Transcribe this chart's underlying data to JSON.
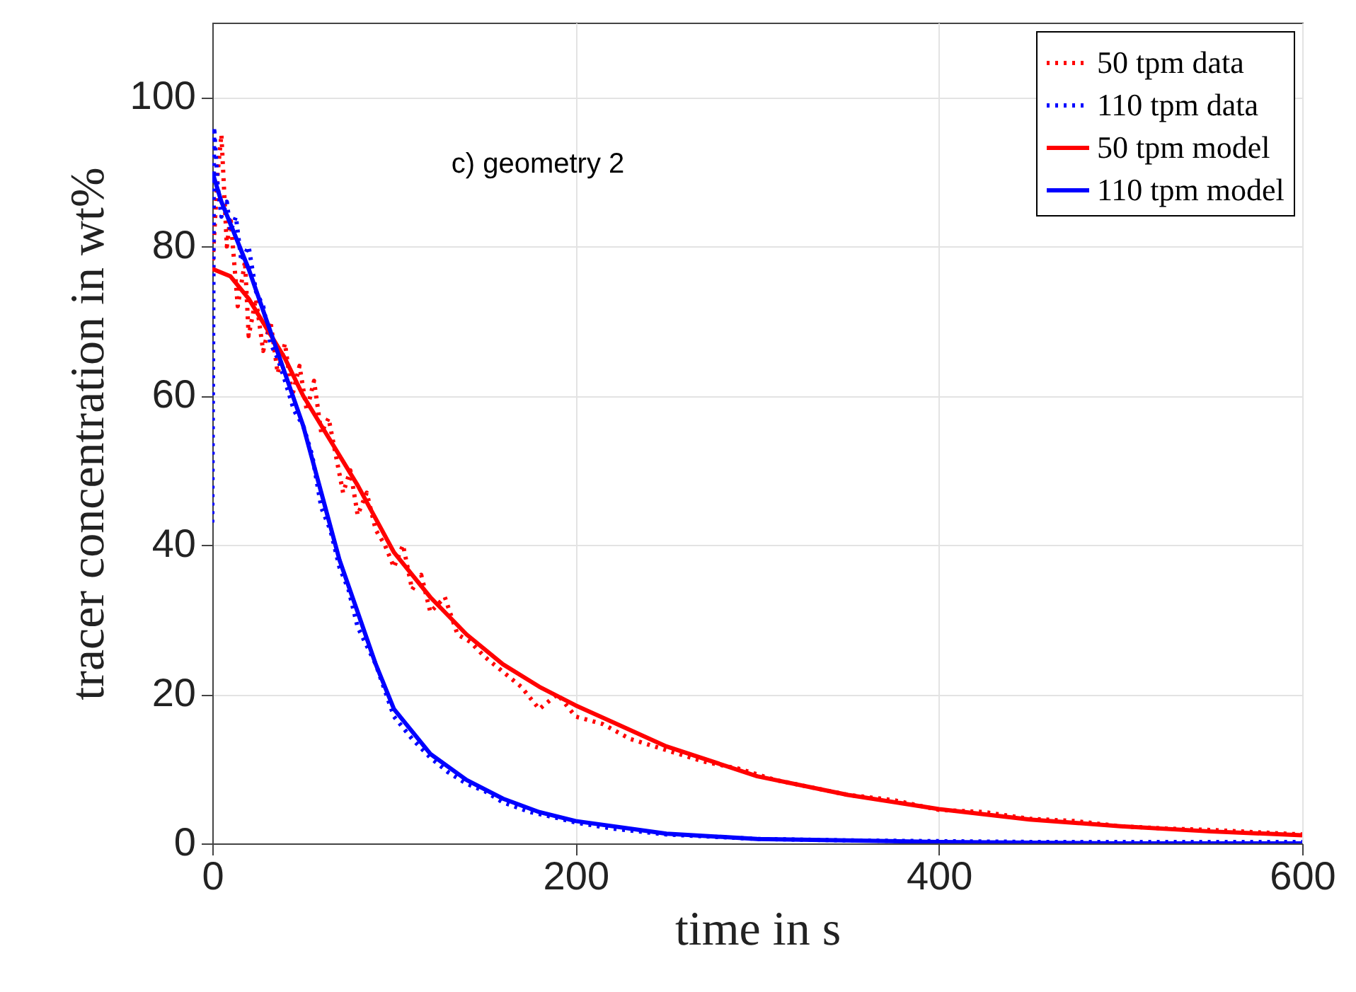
{
  "chart_data": {
    "type": "line",
    "xlabel": "time in s",
    "ylabel": "tracer concentration in wt%",
    "annotations": [
      "c) geometry 2"
    ],
    "xlim": [
      0,
      600
    ],
    "xticks": [
      0,
      200,
      400,
      600
    ],
    "ylim": [
      0,
      110
    ],
    "yticks": [
      0,
      20,
      40,
      60,
      80,
      100
    ],
    "grid": true,
    "legend": "top right",
    "series": [
      {
        "name": "50 tpm data",
        "color": "#ff0000",
        "line_style": "dotted",
        "x": [
          0,
          3,
          5,
          8,
          10,
          14,
          18,
          20,
          24,
          28,
          32,
          36,
          40,
          44,
          48,
          52,
          56,
          60,
          64,
          68,
          72,
          76,
          80,
          85,
          90,
          95,
          100,
          105,
          110,
          115,
          120,
          128,
          135,
          142,
          150,
          160,
          170,
          180,
          190,
          200,
          215,
          230,
          250,
          270,
          290,
          310,
          330,
          350,
          375,
          400,
          425,
          450,
          475,
          500,
          525,
          550,
          575,
          600
        ],
        "values": [
          77,
          90,
          95,
          80,
          84,
          72,
          78,
          68,
          73,
          66,
          70,
          63,
          67,
          60,
          64,
          58,
          62,
          55,
          57,
          52,
          47,
          50,
          44,
          47,
          42,
          40,
          37,
          40,
          34,
          36,
          31,
          33,
          28,
          27,
          25,
          23,
          21,
          18,
          20,
          17,
          16,
          14,
          12.5,
          11,
          10,
          8.5,
          7.5,
          6.5,
          5.8,
          4.5,
          4.2,
          3.3,
          3,
          2.3,
          2,
          1.8,
          1.5,
          1.2
        ]
      },
      {
        "name": "110 tpm data",
        "color": "#0000ff",
        "line_style": "dotted",
        "x": [
          0,
          1,
          3,
          5,
          8,
          10,
          13,
          16,
          20,
          24,
          28,
          32,
          36,
          40,
          45,
          50,
          55,
          60,
          65,
          70,
          75,
          80,
          90,
          100,
          110,
          120,
          130,
          140,
          150,
          160,
          175,
          190,
          200,
          220,
          250,
          275,
          300,
          350,
          400,
          450,
          500,
          600
        ],
        "values": [
          43,
          96,
          88,
          84,
          86,
          82,
          84,
          78,
          80,
          74,
          72,
          67,
          65,
          62,
          58,
          56,
          52,
          45,
          42,
          37,
          34,
          29,
          24,
          17,
          14,
          11.5,
          9.5,
          8,
          7,
          5.5,
          4.2,
          3.4,
          2.8,
          2,
          1.2,
          0.9,
          0.6,
          0.4,
          0.3,
          0.2,
          0.2,
          0.2
        ]
      },
      {
        "name": "50 tpm model",
        "color": "#ff0000",
        "line_style": "solid",
        "x": [
          0,
          10,
          20,
          30,
          40,
          50,
          60,
          80,
          100,
          120,
          140,
          160,
          180,
          200,
          250,
          300,
          350,
          400,
          450,
          500,
          550,
          600
        ],
        "values": [
          77,
          76,
          73,
          69,
          65,
          60,
          56,
          48,
          39,
          33,
          28,
          24,
          21,
          18.5,
          13,
          9,
          6.5,
          4.6,
          3.2,
          2.3,
          1.6,
          1.1
        ]
      },
      {
        "name": "110 tpm model",
        "color": "#0000ff",
        "line_style": "solid",
        "x": [
          0,
          5,
          10,
          20,
          30,
          40,
          50,
          60,
          70,
          80,
          90,
          100,
          120,
          140,
          160,
          180,
          200,
          250,
          300,
          400,
          500,
          600
        ],
        "values": [
          90,
          86,
          83,
          77,
          70,
          63,
          56,
          47,
          38,
          31,
          24,
          18,
          12,
          8.5,
          6,
          4.2,
          3,
          1.3,
          0.6,
          0.2,
          0,
          0
        ]
      }
    ]
  }
}
